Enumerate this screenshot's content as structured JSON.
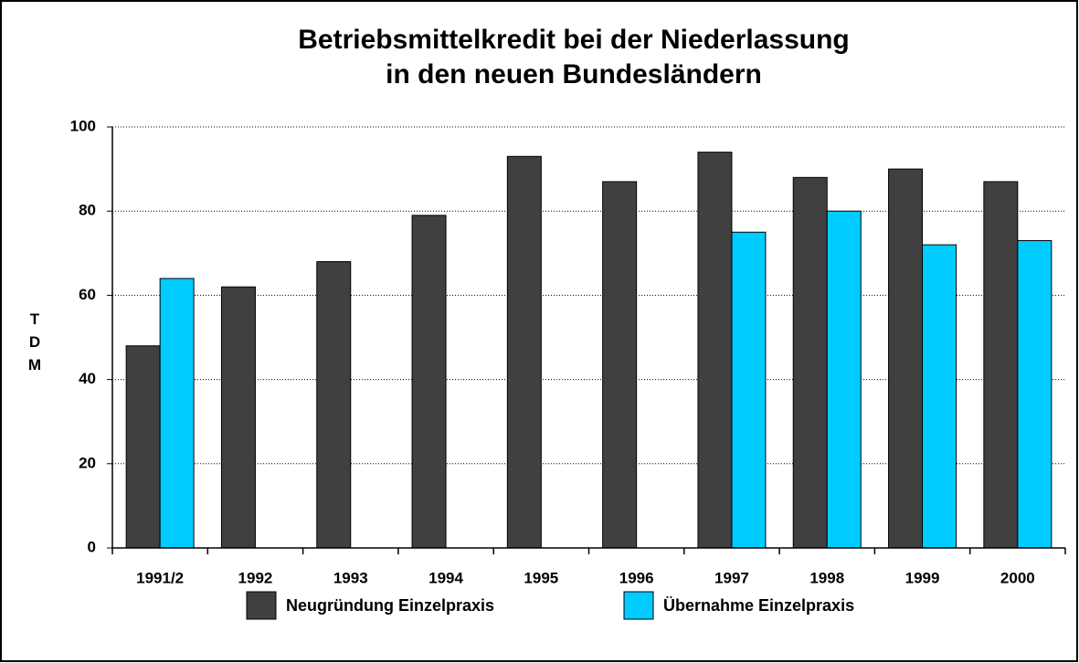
{
  "chart_data": {
    "type": "bar",
    "title": [
      "Betriebsmittelkredit bei der Niederlassung",
      "in den neuen Bundesländern"
    ],
    "y_label": "TDM",
    "categories": [
      "1991/2",
      "1992",
      "1993",
      "1994",
      "1995",
      "1996",
      "1997",
      "1998",
      "1999",
      "2000"
    ],
    "series": [
      {
        "name": "Neugründung Einzelpraxis",
        "color": "#404040",
        "values": [
          48,
          62,
          68,
          79,
          93,
          87,
          94,
          88,
          90,
          87
        ]
      },
      {
        "name": "Übernahme Einzelpraxis",
        "color": "#00ccff",
        "values": [
          64,
          null,
          null,
          null,
          null,
          null,
          75,
          80,
          72,
          73
        ]
      }
    ],
    "ylim": [
      0,
      100
    ],
    "yticks": [
      0,
      20,
      40,
      60,
      80,
      100
    ],
    "grid": true,
    "legend": "bottom"
  }
}
